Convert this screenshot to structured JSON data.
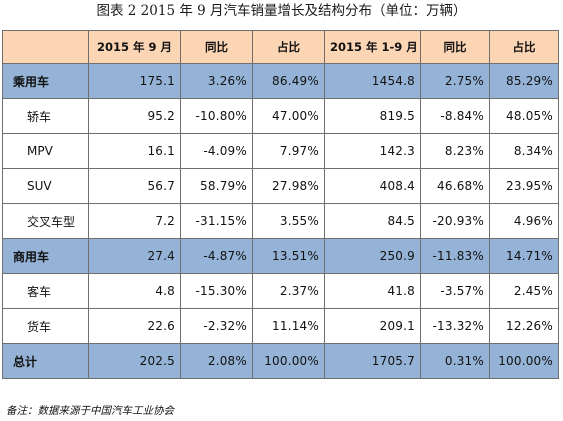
{
  "title": "图表 2  2015 年 9 月汽车销量增长及结构分布（单位：万辆）",
  "headers": [
    "",
    "2015 年 9 月",
    "同比",
    "占比",
    "2015 年 1-9 月",
    "同比",
    "占比"
  ],
  "rows": [
    {
      "label": "乘用车",
      "cells": [
        "175.1",
        "3.26%",
        "86.49%",
        "1454.8",
        "2.75%",
        "85.29%"
      ]
    },
    {
      "label": "轿车",
      "cells": [
        "95.2",
        "-10.80%",
        "47.00%",
        "819.5",
        "-8.84%",
        "48.05%"
      ]
    },
    {
      "label": "MPV",
      "cells": [
        "16.1",
        "-4.09%",
        "7.97%",
        "142.3",
        "8.23%",
        "8.34%"
      ]
    },
    {
      "label": "SUV",
      "cells": [
        "56.7",
        "58.79%",
        "27.98%",
        "408.4",
        "46.68%",
        "23.95%"
      ]
    },
    {
      "label": "交叉车型",
      "cells": [
        "7.2",
        "-31.15%",
        "3.55%",
        "84.5",
        "-20.93%",
        "4.96%"
      ]
    },
    {
      "label": "商用车",
      "cells": [
        "27.4",
        "-4.87%",
        "13.51%",
        "250.9",
        "-11.83%",
        "14.71%"
      ]
    },
    {
      "label": "客车",
      "cells": [
        "4.8",
        "-15.30%",
        "2.37%",
        "41.8",
        "-3.57%",
        "2.45%"
      ]
    },
    {
      "label": "货车",
      "cells": [
        "22.6",
        "-2.32%",
        "11.14%",
        "209.1",
        "-13.32%",
        "12.26%"
      ]
    },
    {
      "label": "总计",
      "cells": [
        "202.5",
        "2.08%",
        "100.00%",
        "1705.7",
        "0.31%",
        "100.00%"
      ]
    }
  ],
  "note": "备注：数据来源于中国汽车工业协会",
  "colors": {
    "header_bg": "#fcd5b4",
    "highlight_bg": "#95b3d7",
    "border": "#6f6f6f"
  }
}
